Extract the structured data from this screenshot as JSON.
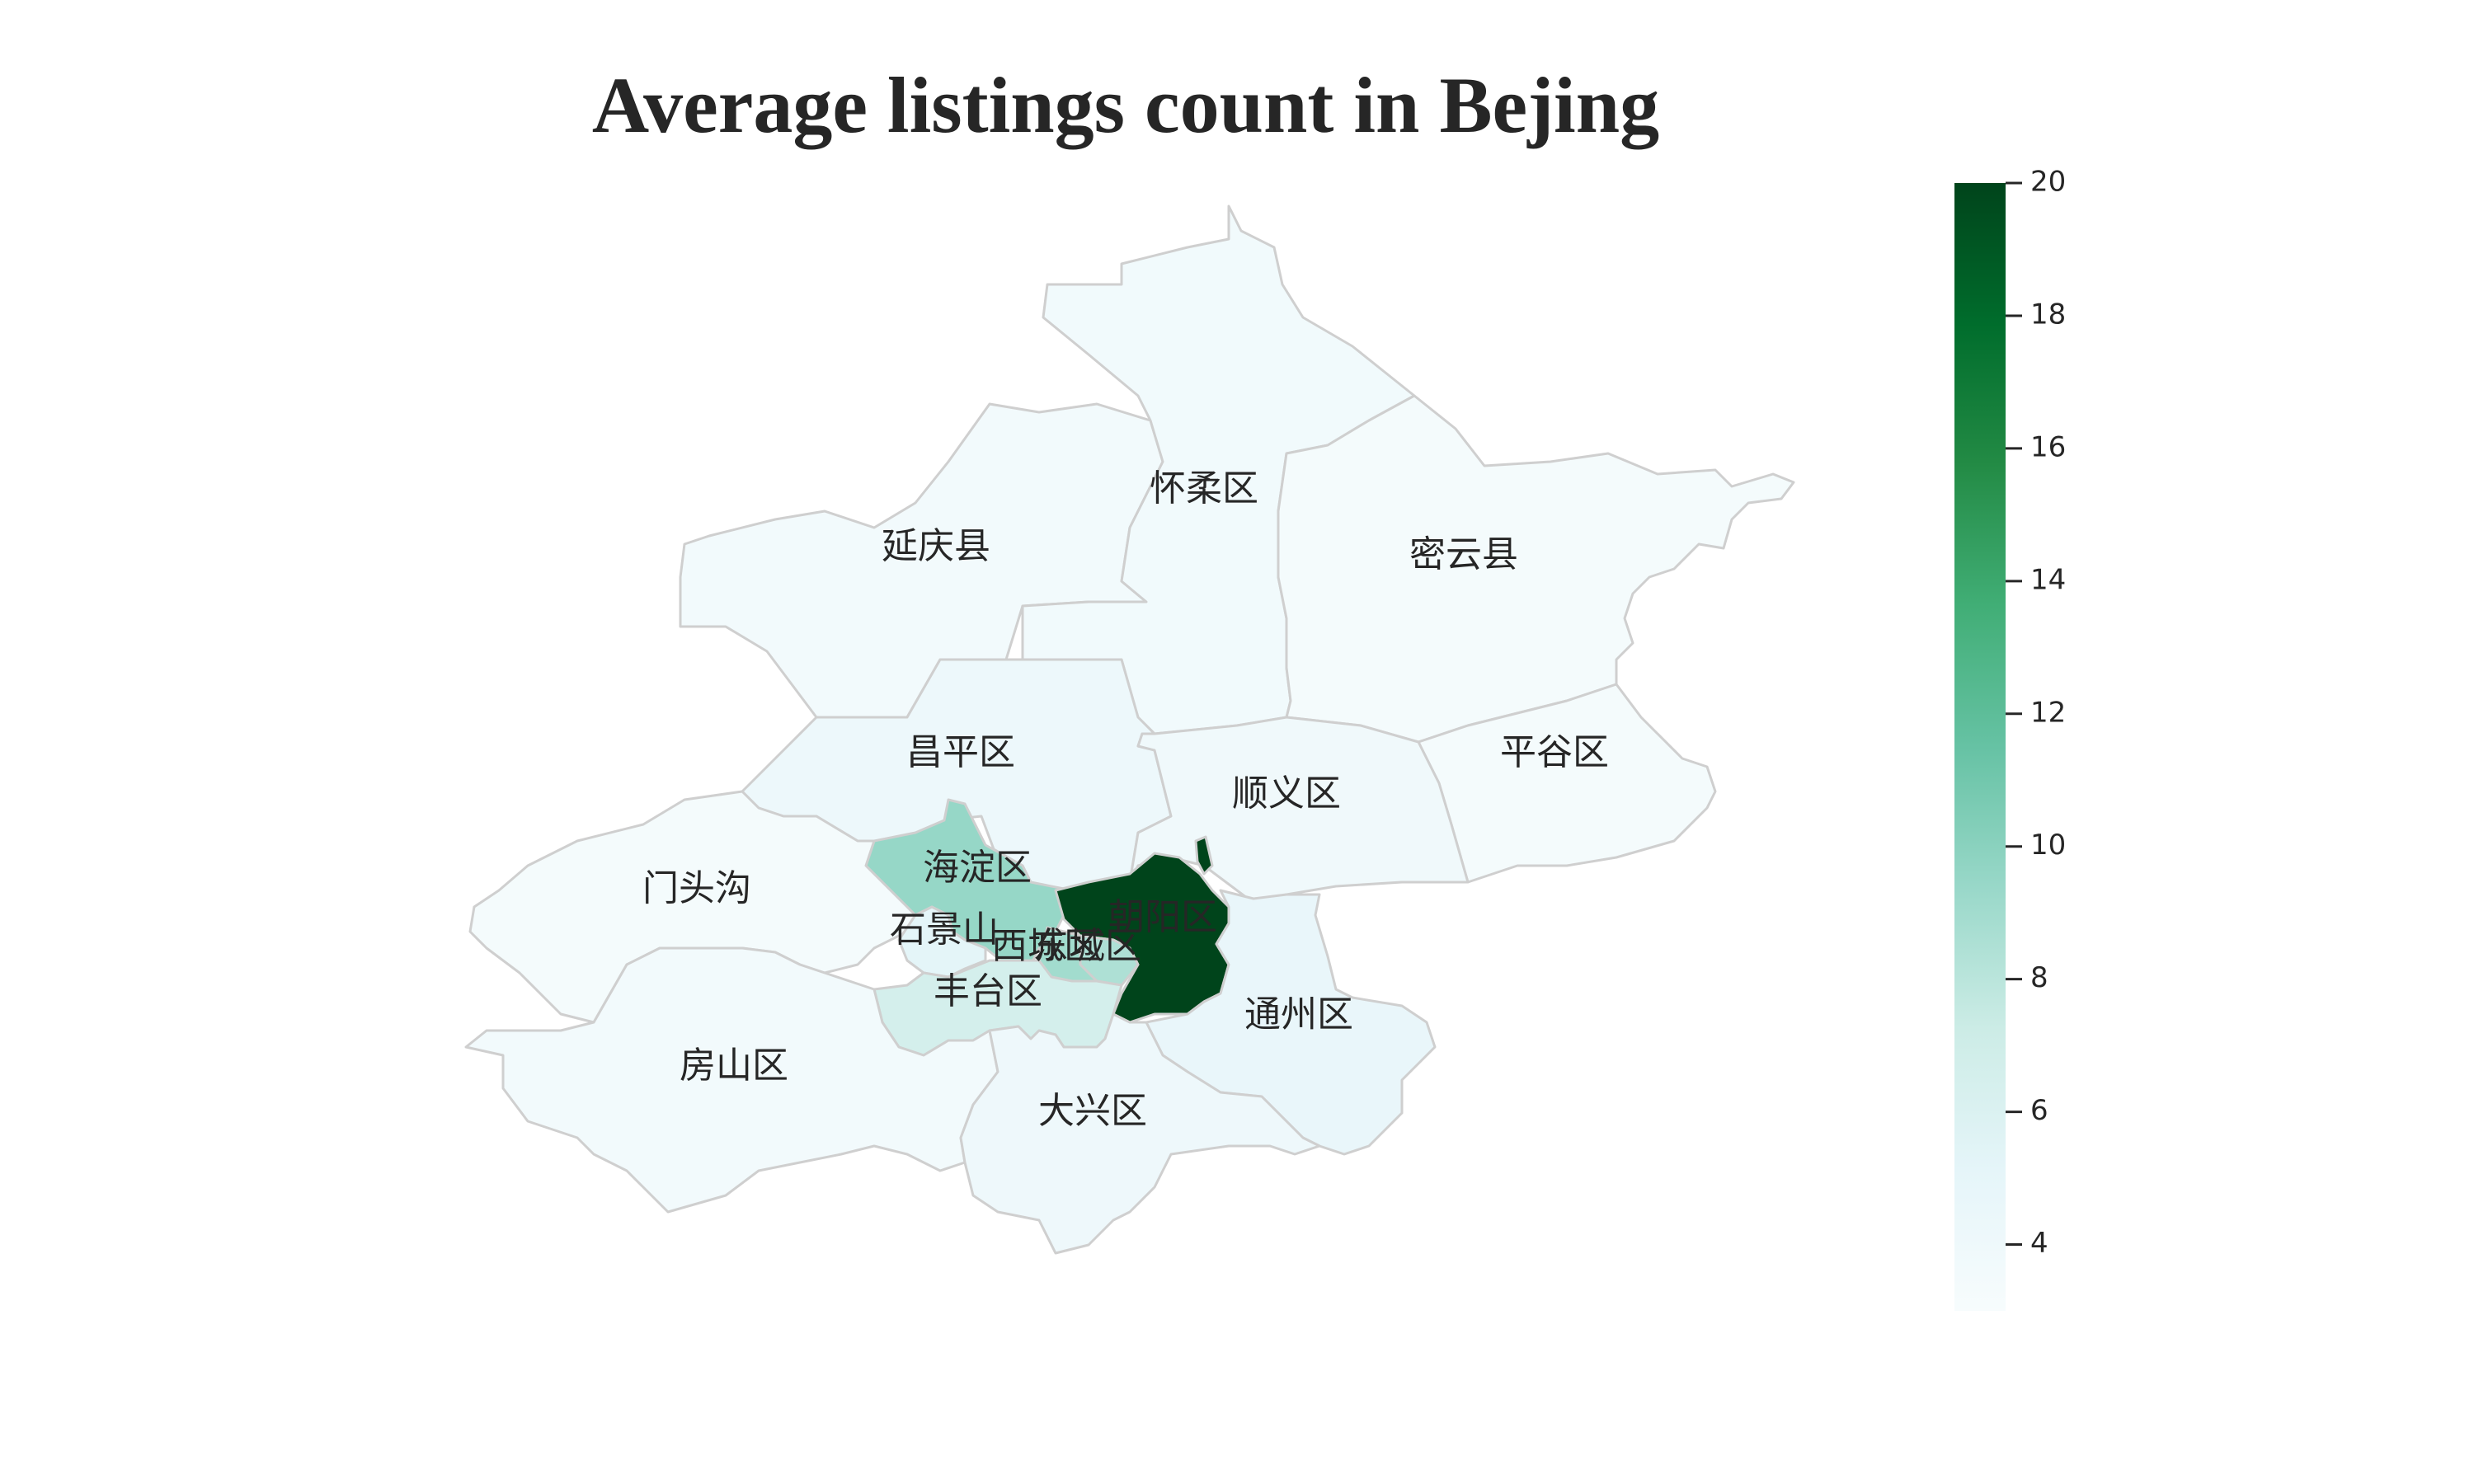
{
  "chart_data": {
    "type": "choropleth",
    "title": "Average listings count in Bejing",
    "colorbar": {
      "min": 3,
      "max": 20,
      "ticks": [
        4,
        6,
        8,
        10,
        12,
        14,
        16,
        18,
        20
      ],
      "colorscale": [
        "#f7fcfd",
        "#e5f5f9",
        "#ccece6",
        "#99d8c9",
        "#66c2a4",
        "#41ae76",
        "#238b45",
        "#006d2c",
        "#00441b"
      ],
      "position": "right"
    },
    "regions": [
      {
        "name": "延庆县",
        "value": 3.6
      },
      {
        "name": "怀柔区",
        "value": 3.7
      },
      {
        "name": "密云县",
        "value": 3.4
      },
      {
        "name": "昌平区",
        "value": 4.2
      },
      {
        "name": "平谷区",
        "value": 3.3
      },
      {
        "name": "顺义区",
        "value": 3.8
      },
      {
        "name": "海淀区",
        "value": 9.5
      },
      {
        "name": "门头沟",
        "value": 3.4
      },
      {
        "name": "石景山",
        "value": 5.2
      },
      {
        "name": "朝阳区",
        "value": 20.0
      },
      {
        "name": "东城区",
        "value": 8.5
      },
      {
        "name": "西城区",
        "value": 9.0
      },
      {
        "name": "丰台区",
        "value": 6.6
      },
      {
        "name": "通州区",
        "value": 4.7
      },
      {
        "name": "房山区",
        "value": 3.6
      },
      {
        "name": "大兴区",
        "value": 4.1
      }
    ]
  }
}
